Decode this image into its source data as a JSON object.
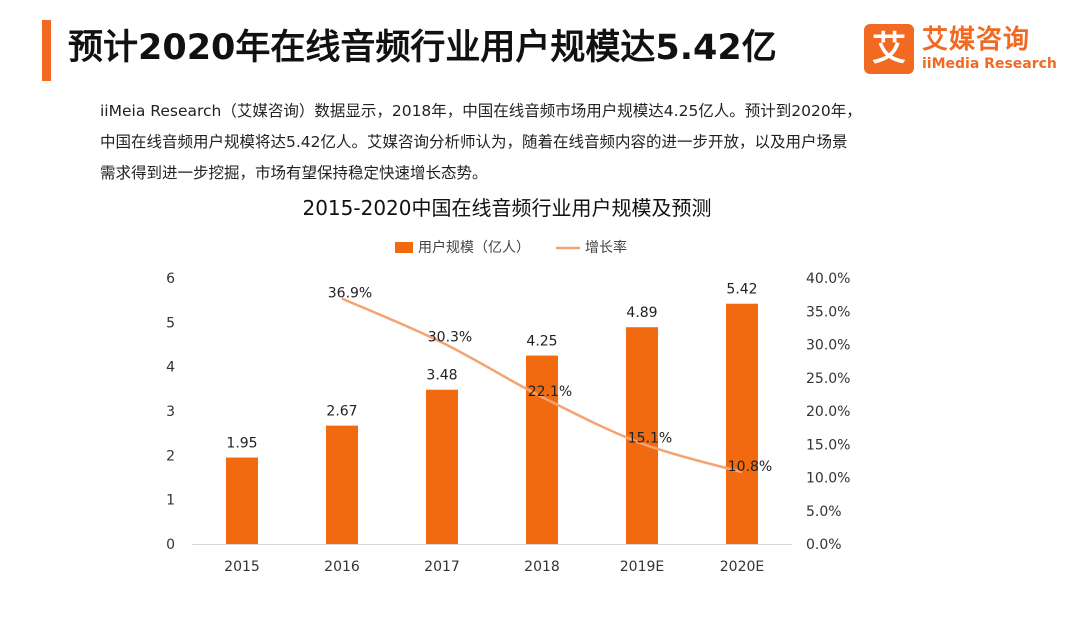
{
  "header": {
    "title": "预计2020年在线音频行业用户规模达5.42亿"
  },
  "logo": {
    "mark": "艾",
    "name_cn": "艾媒咨询",
    "name_en": "iiMedia Research"
  },
  "body_text": {
    "line1": "iiMeia Research（艾媒咨询）数据显示，2018年，中国在线音频市场用户规模达4.25亿人。预计到2020年，",
    "line2": "中国在线音频用户规模将达5.42亿人。艾媒咨询分析师认为，随着在线音频内容的进一步开放，以及用户场景",
    "line3": "需求得到进一步挖掘，市场有望保持稳定快速增长态势。"
  },
  "colors": {
    "accent": "#f26a22",
    "bar": "#f26a0f",
    "line": "#f4a372"
  },
  "chart_data": {
    "type": "bar",
    "title": "2015-2020中国在线音频行业用户规模及预测",
    "categories": [
      "2015",
      "2016",
      "2017",
      "2018",
      "2019E",
      "2020E"
    ],
    "series": [
      {
        "name": "用户规模（亿人）",
        "type": "bar",
        "axis": "left",
        "values": [
          1.95,
          2.67,
          3.48,
          4.25,
          4.89,
          5.42
        ],
        "labels": [
          "1.95",
          "2.67",
          "3.48",
          "4.25",
          "4.89",
          "5.42"
        ]
      },
      {
        "name": "增长率",
        "type": "line",
        "axis": "right",
        "values": [
          null,
          36.9,
          30.3,
          22.1,
          15.1,
          10.8
        ],
        "labels": [
          "",
          "36.9%",
          "30.3%",
          "22.1%",
          "15.1%",
          "10.8%"
        ]
      }
    ],
    "y_left": {
      "min": 0,
      "max": 6,
      "ticks": [
        "0",
        "1",
        "2",
        "3",
        "4",
        "5",
        "6"
      ]
    },
    "y_right": {
      "min": 0,
      "max": 40,
      "ticks": [
        "0.0%",
        "5.0%",
        "10.0%",
        "15.0%",
        "20.0%",
        "25.0%",
        "30.0%",
        "35.0%",
        "40.0%"
      ]
    },
    "legend_position": "top",
    "grid": false
  }
}
